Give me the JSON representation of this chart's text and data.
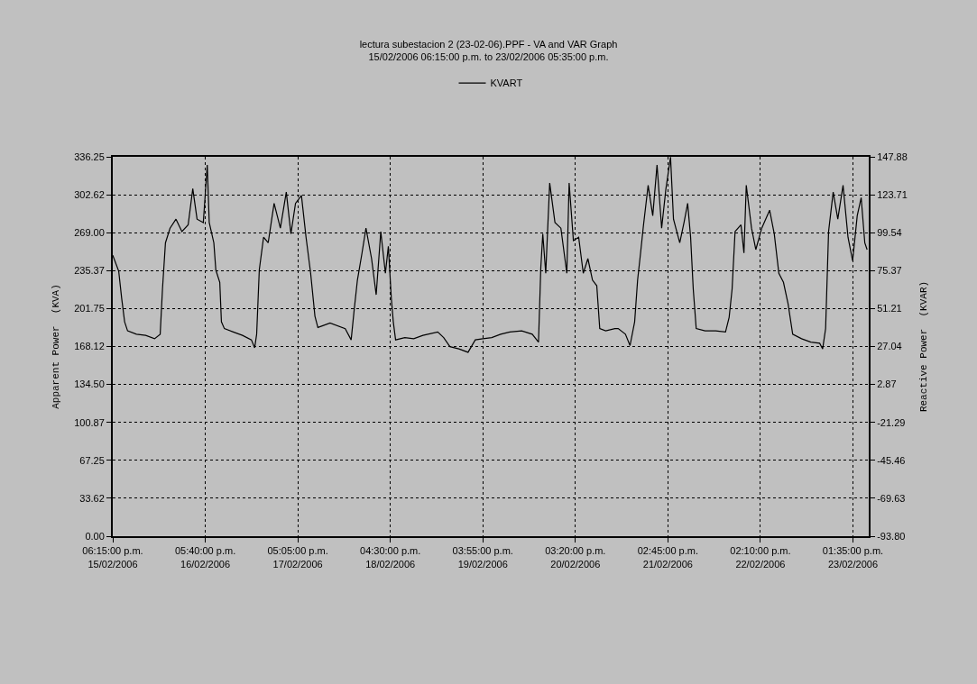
{
  "chart_data": {
    "type": "line",
    "title": "lectura subestacion 2 (23-02-06).PPF - VA and VAR Graph",
    "subtitle": "15/02/2006 06:15:00 p.m. to 23/02/2006 05:35:00 p.m.",
    "ylabel": "Apparent Power  (KVA)",
    "y2label": "Reactive Power  (KVAR)",
    "legend": "top",
    "grid": true,
    "series": [
      {
        "name": "KVART",
        "color": "#000000",
        "x": [
          "2006-02-15T18:15",
          "2006-02-15T19:45",
          "2006-02-15T20:30",
          "2006-02-15T21:15",
          "2006-02-15T22:00",
          "2006-02-16T00:15",
          "2006-02-16T02:35",
          "2006-02-16T04:50",
          "2006-02-16T06:15",
          "2006-02-16T06:50",
          "2006-02-16T07:35",
          "2006-02-16T08:45",
          "2006-02-16T10:15",
          "2006-02-16T11:45",
          "2006-02-16T13:20",
          "2006-02-16T14:30",
          "2006-02-16T15:35",
          "2006-02-16T17:10",
          "2006-02-16T18:10",
          "2006-02-16T18:40",
          "2006-02-16T19:50",
          "2006-02-16T20:20",
          "2006-02-16T21:20",
          "2006-02-16T21:45",
          "2006-02-16T22:30",
          "2006-02-17T00:45",
          "2006-02-17T03:05",
          "2006-02-17T05:20",
          "2006-02-17T06:10",
          "2006-02-17T06:40",
          "2006-02-17T07:20",
          "2006-02-17T08:25",
          "2006-02-17T09:35",
          "2006-02-17T11:05",
          "2006-02-17T12:40",
          "2006-02-17T14:10",
          "2006-02-17T15:20",
          "2006-02-17T16:30",
          "2006-02-17T18:00",
          "2006-02-17T19:10",
          "2006-02-17T20:20",
          "2006-02-17T21:25",
          "2006-02-17T22:10",
          "2006-02-18T01:15",
          "2006-02-18T05:05",
          "2006-02-18T06:35",
          "2006-02-18T07:20",
          "2006-02-18T08:10",
          "2006-02-18T09:20",
          "2006-02-18T10:20",
          "2006-02-18T11:45",
          "2006-02-18T12:55",
          "2006-02-18T14:05",
          "2006-02-18T15:15",
          "2006-02-18T16:00",
          "2006-02-18T16:45",
          "2006-02-18T17:15",
          "2006-02-18T17:50",
          "2006-02-18T20:10",
          "2006-02-18T22:25",
          "2006-02-19T00:45",
          "2006-02-19T04:30",
          "2006-02-19T06:00",
          "2006-02-19T07:35",
          "2006-02-19T09:50",
          "2006-02-19T12:10",
          "2006-02-19T14:00",
          "2006-02-19T15:55",
          "2006-02-19T18:10",
          "2006-02-19T20:25",
          "2006-02-19T22:45",
          "2006-02-20T01:45",
          "2006-02-20T04:25",
          "2006-02-20T06:00",
          "2006-02-20T06:35",
          "2006-02-20T07:05",
          "2006-02-20T07:50",
          "2006-02-20T08:50",
          "2006-02-20T10:10",
          "2006-02-20T11:40",
          "2006-02-20T13:10",
          "2006-02-20T13:45",
          "2006-02-20T14:50",
          "2006-02-20T16:10",
          "2006-02-20T17:20",
          "2006-02-20T18:30",
          "2006-02-20T19:40",
          "2006-02-20T20:45",
          "2006-02-20T21:30",
          "2006-02-20T23:00",
          "2006-02-21T01:20",
          "2006-02-21T02:10",
          "2006-02-21T04:00",
          "2006-02-21T05:10",
          "2006-02-21T06:20",
          "2006-02-21T07:05",
          "2006-02-21T07:50",
          "2006-02-21T08:35",
          "2006-02-21T09:45",
          "2006-02-21T10:55",
          "2006-02-21T12:00",
          "2006-02-21T13:10",
          "2006-02-21T14:15",
          "2006-02-21T15:25",
          "2006-02-21T16:10",
          "2006-02-21T17:45",
          "2006-02-21T18:50",
          "2006-02-21T19:45",
          "2006-02-21T20:30",
          "2006-02-21T21:10",
          "2006-02-21T21:55",
          "2006-02-22T00:10",
          "2006-02-22T02:50",
          "2006-02-22T05:20",
          "2006-02-22T06:15",
          "2006-02-22T07:00",
          "2006-02-22T07:45",
          "2006-02-22T09:15",
          "2006-02-22T10:00",
          "2006-02-22T10:35",
          "2006-02-22T11:55",
          "2006-02-22T13:00",
          "2006-02-22T14:30",
          "2006-02-22T16:30",
          "2006-02-22T17:40",
          "2006-02-22T18:50",
          "2006-02-22T20:00",
          "2006-02-22T21:10",
          "2006-02-22T22:20",
          "2006-02-23T00:35",
          "2006-02-23T02:55",
          "2006-02-23T05:10",
          "2006-02-23T05:55",
          "2006-02-23T06:40",
          "2006-02-23T07:25",
          "2006-02-23T08:35",
          "2006-02-23T09:45",
          "2006-02-23T11:05",
          "2006-02-23T12:20",
          "2006-02-23T13:30",
          "2006-02-23T14:40",
          "2006-02-23T15:40",
          "2006-02-23T16:35",
          "2006-02-23T17:10"
        ],
        "values": [
          249,
          235,
          211,
          190,
          182,
          179,
          178,
          175,
          179,
          219,
          260,
          273,
          281,
          270,
          276,
          308,
          281,
          278,
          329,
          278,
          260,
          236,
          225,
          190,
          184,
          181,
          178,
          174,
          167,
          179,
          236,
          265,
          260,
          295,
          273,
          305,
          268,
          295,
          302,
          265,
          233,
          195,
          185,
          189,
          184,
          174,
          200,
          227,
          251,
          273,
          246,
          214,
          270,
          233,
          257,
          211,
          190,
          174,
          176,
          175,
          178,
          181,
          176,
          168,
          166,
          163,
          174,
          175,
          176,
          179,
          181,
          182,
          179,
          172,
          238,
          268,
          233,
          313,
          278,
          273,
          233,
          313,
          262,
          265,
          233,
          246,
          227,
          222,
          184,
          182,
          184,
          184,
          179,
          169,
          190,
          227,
          251,
          276,
          311,
          284,
          329,
          273,
          308,
          336,
          281,
          260,
          278,
          295,
          265,
          219,
          184,
          182,
          182,
          181,
          194,
          219,
          270,
          276,
          251,
          311,
          273,
          254,
          273,
          289,
          268,
          233,
          225,
          206,
          179,
          175,
          172,
          171,
          166,
          184,
          270,
          305,
          281,
          311,
          265,
          244,
          284,
          300,
          260,
          254
        ]
      }
    ],
    "xlim": [
      "2006-02-15T18:15",
      "2006-02-23T17:35"
    ],
    "xticks": [
      {
        "value": "2006-02-15T18:15",
        "label": "06:15:00 p.m.\n15/02/2006"
      },
      {
        "value": "2006-02-16T17:40",
        "label": "05:40:00 p.m.\n16/02/2006"
      },
      {
        "value": "2006-02-17T17:05",
        "label": "05:05:00 p.m.\n17/02/2006"
      },
      {
        "value": "2006-02-18T16:30",
        "label": "04:30:00 p.m.\n18/02/2006"
      },
      {
        "value": "2006-02-19T15:55",
        "label": "03:55:00 p.m.\n19/02/2006"
      },
      {
        "value": "2006-02-20T15:20",
        "label": "03:20:00 p.m.\n20/02/2006"
      },
      {
        "value": "2006-02-21T14:45",
        "label": "02:45:00 p.m.\n21/02/2006"
      },
      {
        "value": "2006-02-22T14:10",
        "label": "02:10:00 p.m.\n22/02/2006"
      },
      {
        "value": "2006-02-23T13:35",
        "label": "01:35:00 p.m.\n23/02/2006"
      }
    ],
    "ylim": [
      0,
      336.25
    ],
    "yticks": [
      {
        "value": 0,
        "label": "0.00"
      },
      33.62,
      67.25,
      100.87,
      {
        "value": 134.5,
        "label": "134.50"
      },
      168.12,
      201.75,
      235.37,
      {
        "value": 269,
        "label": "269.00"
      },
      302.62,
      336.25
    ],
    "y2lim": [
      -93.8,
      147.88
    ],
    "y2ticks": [
      {
        "value": -93.8,
        "label": "-93.80"
      },
      -69.63,
      -45.46,
      -21.29,
      2.87,
      27.04,
      51.21,
      75.37,
      99.54,
      123.71,
      147.88
    ]
  }
}
